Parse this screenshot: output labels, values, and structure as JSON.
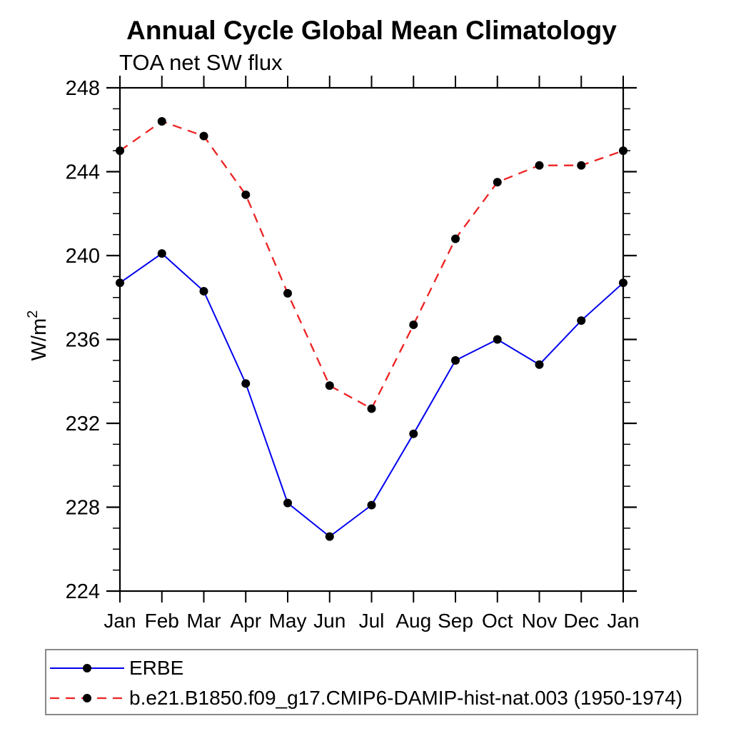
{
  "page": {
    "title": "Annual Cycle Global Mean Climatology",
    "subtitle": "TOA net SW flux"
  },
  "chart_data": {
    "type": "line",
    "title": "Annual Cycle Global Mean Climatology",
    "subtitle": "TOA net SW flux",
    "xlabel": "",
    "ylabel": "W/m²",
    "x_categories": [
      "Jan",
      "Feb",
      "Mar",
      "Apr",
      "May",
      "Jun",
      "Jul",
      "Aug",
      "Sep",
      "Oct",
      "Nov",
      "Dec",
      "Jan"
    ],
    "ylim": [
      224,
      248
    ],
    "yticks": [
      224,
      228,
      232,
      236,
      240,
      244,
      248
    ],
    "y_minor_step": 1,
    "grid": false,
    "frame": "full box, outward ticks on all four sides",
    "legend_position": "bottom-left boxed",
    "marker": "filled-circle",
    "marker_color": "#000000",
    "axis_color": "#000000",
    "series": [
      {
        "name": "ERBE",
        "color": "#0000ee",
        "line_style": "solid",
        "values": [
          238.7,
          240.1,
          238.3,
          233.9,
          228.2,
          226.6,
          228.1,
          231.5,
          235.0,
          236.0,
          234.8,
          236.9,
          238.7
        ]
      },
      {
        "name": "b.e21.B1850.f09_g17.CMIP6-DAMIP-hist-nat.003 (1950-1974)",
        "color": "#ee2222",
        "line_style": "dashed",
        "values": [
          245.0,
          246.4,
          245.7,
          242.9,
          238.2,
          233.8,
          232.7,
          236.7,
          240.8,
          243.5,
          244.3,
          244.3,
          245.0
        ]
      }
    ]
  }
}
